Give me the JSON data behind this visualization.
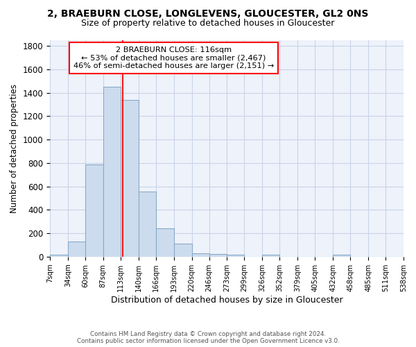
{
  "title1": "2, BRAEBURN CLOSE, LONGLEVENS, GLOUCESTER, GL2 0NS",
  "title2": "Size of property relative to detached houses in Gloucester",
  "xlabel": "Distribution of detached houses by size in Gloucester",
  "ylabel": "Number of detached properties",
  "footnote1": "Contains HM Land Registry data © Crown copyright and database right 2024.",
  "footnote2": "Contains public sector information licensed under the Open Government Licence v3.0.",
  "bin_edges": [
    7,
    34,
    60,
    87,
    113,
    140,
    166,
    193,
    220,
    246,
    273,
    299,
    326,
    352,
    379,
    405,
    432,
    458,
    485,
    511,
    538
  ],
  "bar_heights": [
    15,
    130,
    785,
    1450,
    1340,
    555,
    245,
    110,
    30,
    25,
    15,
    0,
    15,
    0,
    0,
    0,
    20,
    0,
    0,
    0
  ],
  "bar_color": "#ccdcee",
  "bar_edge_color": "#88aac8",
  "grid_color": "#c8d4e8",
  "background_color": "#eef2fa",
  "red_line_x": 116,
  "annotation_text1": "2 BRAEBURN CLOSE: 116sqm",
  "annotation_text2": "← 53% of detached houses are smaller (2,467)",
  "annotation_text3": "46% of semi-detached houses are larger (2,151) →",
  "ylim": [
    0,
    1850
  ],
  "yticks": [
    0,
    200,
    400,
    600,
    800,
    1000,
    1200,
    1400,
    1600,
    1800
  ]
}
